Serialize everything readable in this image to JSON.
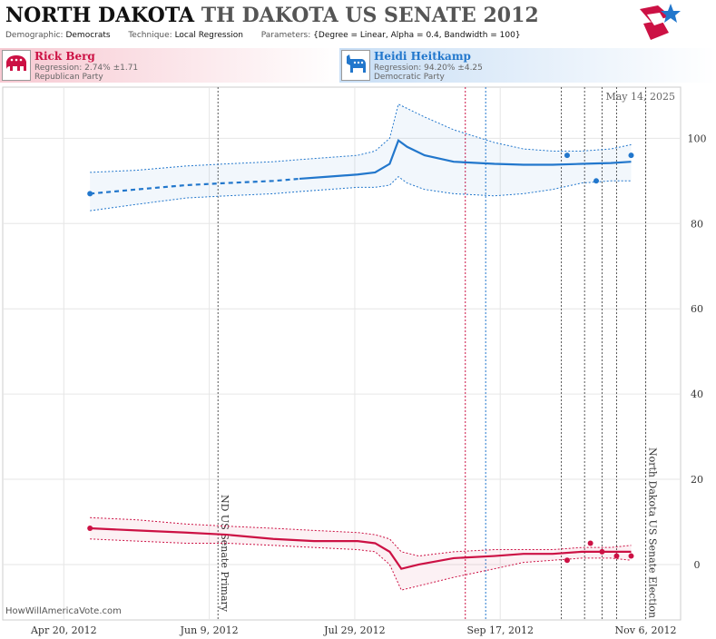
{
  "header": {
    "title_main": "NORTH DAKOTA",
    "title_rest": "TH DAKOTA US SENATE 2012",
    "demographic_label": "Demographic:",
    "demographic_value": "Democrats",
    "technique_label": "Technique:",
    "technique_value": "Local Regression",
    "parameters_label": "Parameters:",
    "parameters_value": "{Degree = Linear, Alpha = 0.4, Bandwidth = 100}"
  },
  "candidates": [
    {
      "name": "Rick Berg",
      "regression": "Regression: 2.74% ±1.71",
      "party": "Republican Party",
      "color": "#cc1144",
      "icon": "elephant-icon"
    },
    {
      "name": "Heidi Heitkamp",
      "regression": "Regression: 94.20% ±4.25",
      "party": "Democratic Party",
      "color": "#2277cc",
      "icon": "donkey-icon"
    }
  ],
  "footer": "HowWillAmericaVote.com",
  "chart_data": {
    "type": "line",
    "date_stamp": "May 14, 2025",
    "x_ticks": [
      "Apr 20, 2012",
      "Jun 9, 2012",
      "Jul 29, 2012",
      "Sep 17, 2012",
      "Nov 6, 2012"
    ],
    "y_ticks": [
      0,
      20,
      40,
      60,
      80,
      100
    ],
    "ylim": [
      -13,
      112
    ],
    "xlim": [
      "2012-03-30",
      "2012-11-18"
    ],
    "grid": true,
    "events": [
      {
        "date": "2012-06-12",
        "label": "ND US Senate Primary"
      },
      {
        "date": "2012-11-06",
        "label": "North Dakota US Senate Election"
      }
    ],
    "event_markers": [
      {
        "date": "2012-09-05",
        "color": "#cc1144"
      },
      {
        "date": "2012-09-12",
        "color": "#2277cc"
      },
      {
        "date": "2012-10-08",
        "color": "#555555"
      },
      {
        "date": "2012-10-16",
        "color": "#555555"
      },
      {
        "date": "2012-10-22",
        "color": "#555555"
      },
      {
        "date": "2012-10-27",
        "color": "#555555"
      }
    ],
    "series": [
      {
        "name": "Heidi Heitkamp",
        "color": "#2277cc",
        "x": [
          "2012-04-29",
          "2012-05-15",
          "2012-06-01",
          "2012-06-15",
          "2012-07-01",
          "2012-07-10",
          "2012-07-20",
          "2012-07-30",
          "2012-08-05",
          "2012-08-10",
          "2012-08-13",
          "2012-08-16",
          "2012-08-22",
          "2012-09-01",
          "2012-09-15",
          "2012-09-25",
          "2012-10-05",
          "2012-10-15",
          "2012-10-25",
          "2012-11-01"
        ],
        "y": [
          87,
          88,
          89,
          89.5,
          90,
          90.5,
          91,
          91.5,
          92,
          94,
          99.5,
          98,
          96,
          94.5,
          94,
          93.8,
          93.8,
          94,
          94.2,
          94.5
        ],
        "upper": [
          92,
          92.5,
          93.5,
          94,
          94.5,
          95,
          95.5,
          96,
          97,
          100,
          108,
          107,
          105,
          102,
          99,
          97.5,
          97,
          97,
          97.5,
          98.5
        ],
        "lower": [
          83,
          84.5,
          86,
          86.5,
          87,
          87.5,
          88,
          88.5,
          88.5,
          89,
          91,
          89.5,
          88,
          87,
          86.5,
          87,
          88,
          89.5,
          90,
          90
        ],
        "dashed_until": "2012-07-10",
        "points": [
          {
            "x": "2012-04-29",
            "y": 87
          },
          {
            "x": "2012-10-10",
            "y": 96
          },
          {
            "x": "2012-10-20",
            "y": 90
          },
          {
            "x": "2012-11-01",
            "y": 96
          }
        ]
      },
      {
        "name": "Rick Berg",
        "color": "#cc1144",
        "x": [
          "2012-04-29",
          "2012-05-15",
          "2012-06-01",
          "2012-06-15",
          "2012-07-01",
          "2012-07-15",
          "2012-07-30",
          "2012-08-05",
          "2012-08-10",
          "2012-08-14",
          "2012-08-20",
          "2012-09-01",
          "2012-09-15",
          "2012-09-25",
          "2012-10-05",
          "2012-10-15",
          "2012-10-25",
          "2012-11-01"
        ],
        "y": [
          8.5,
          8,
          7.5,
          7,
          6,
          5.5,
          5.5,
          5,
          3,
          -1,
          0,
          1.5,
          2,
          2.5,
          2.5,
          3,
          3,
          3
        ],
        "upper": [
          11,
          10.5,
          9.5,
          9,
          8.5,
          8,
          7.5,
          7,
          6,
          3,
          2,
          3,
          3.5,
          3.5,
          3.5,
          4,
          4,
          4.5
        ],
        "lower": [
          6,
          5.5,
          5,
          5,
          4.5,
          4,
          3.5,
          3,
          0,
          -6,
          -5,
          -3,
          -1,
          0.5,
          1,
          1.5,
          1.5,
          1
        ],
        "points": [
          {
            "x": "2012-04-29",
            "y": 8.5
          },
          {
            "x": "2012-10-10",
            "y": 1
          },
          {
            "x": "2012-10-18",
            "y": 5
          },
          {
            "x": "2012-10-22",
            "y": 3
          },
          {
            "x": "2012-10-27",
            "y": 2
          },
          {
            "x": "2012-11-01",
            "y": 2
          }
        ]
      }
    ]
  }
}
